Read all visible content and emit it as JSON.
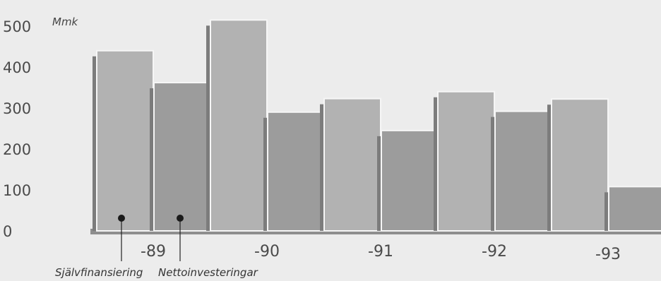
{
  "chart_data": {
    "type": "bar",
    "unit_label": "Mmk",
    "categories": [
      "-89",
      "-90",
      "-91",
      "-92",
      "-93"
    ],
    "series": [
      {
        "name": "Självfinansiering",
        "values": [
          440,
          515,
          323,
          340,
          322
        ],
        "color": "#b2b2b2"
      },
      {
        "name": "Nettoinvesteringar",
        "values": [
          362,
          290,
          245,
          292,
          108
        ],
        "color": "#9c9c9c"
      }
    ],
    "y_ticks": [
      0,
      100,
      200,
      300,
      400,
      500
    ],
    "ylim": [
      0,
      525
    ],
    "grid": false,
    "legend": "bottom-left",
    "colors": {
      "background": "#ececec",
      "baseline": "#8e8e8e",
      "text": "#4a4a4a"
    }
  }
}
